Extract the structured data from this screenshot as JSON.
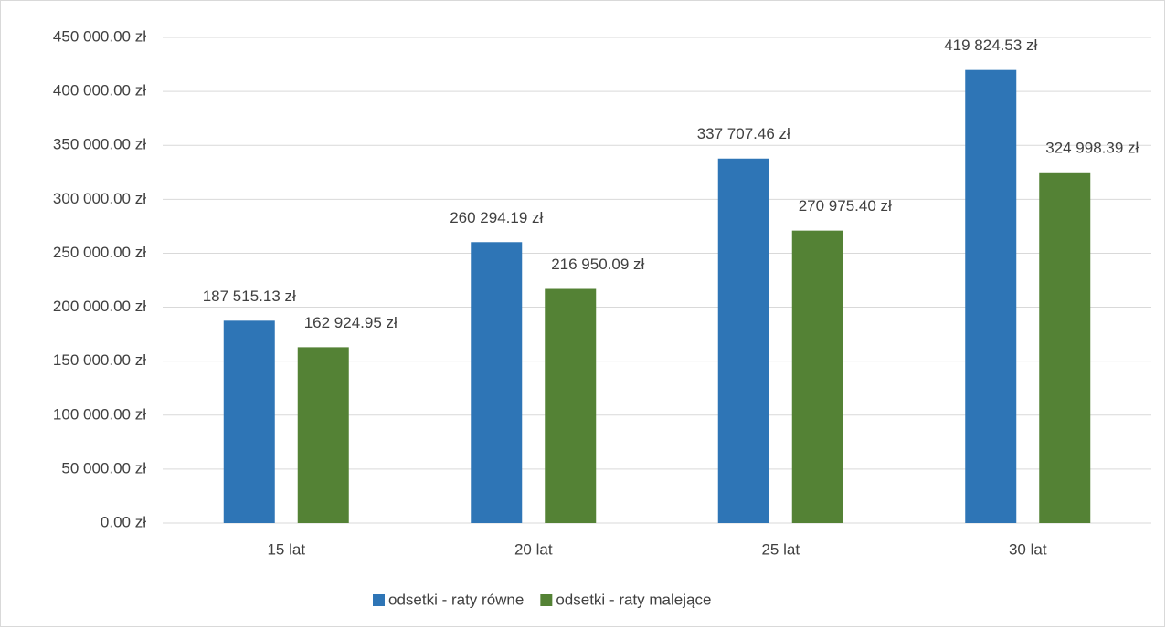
{
  "chart_data": {
    "type": "bar",
    "categories": [
      "15 lat",
      "20 lat",
      "25 lat",
      "30 lat"
    ],
    "series": [
      {
        "name": "odsetki - raty równe",
        "color": "#2e75b6",
        "values": [
          187515.13,
          260294.19,
          337707.46,
          419824.53
        ],
        "value_labels": [
          "187 515.13 zł",
          "260 294.19 zł",
          "337 707.46 zł",
          "419 824.53 zł"
        ]
      },
      {
        "name": "odsetki - raty malejące",
        "color": "#548235",
        "values": [
          162924.95,
          216950.09,
          270975.4,
          324998.39
        ],
        "value_labels": [
          "162 924.95 zł",
          "216 950.09 zł",
          "270 975.40 zł",
          "324 998.39 zł"
        ]
      }
    ],
    "ylim": [
      0,
      450000
    ],
    "yticks": [
      {
        "value": 0,
        "label": "0.00 zł"
      },
      {
        "value": 50000,
        "label": "50 000.00 zł"
      },
      {
        "value": 100000,
        "label": "100 000.00 zł"
      },
      {
        "value": 150000,
        "label": "150 000.00 zł"
      },
      {
        "value": 200000,
        "label": "200 000.00 zł"
      },
      {
        "value": 250000,
        "label": "250 000.00 zł"
      },
      {
        "value": 300000,
        "label": "300 000.00 zł"
      },
      {
        "value": 350000,
        "label": "350 000.00 zł"
      },
      {
        "value": 400000,
        "label": "400 000.00 zł"
      },
      {
        "value": 450000,
        "label": "450 000.00 zł"
      }
    ],
    "grid": true,
    "legend": "bottom"
  }
}
